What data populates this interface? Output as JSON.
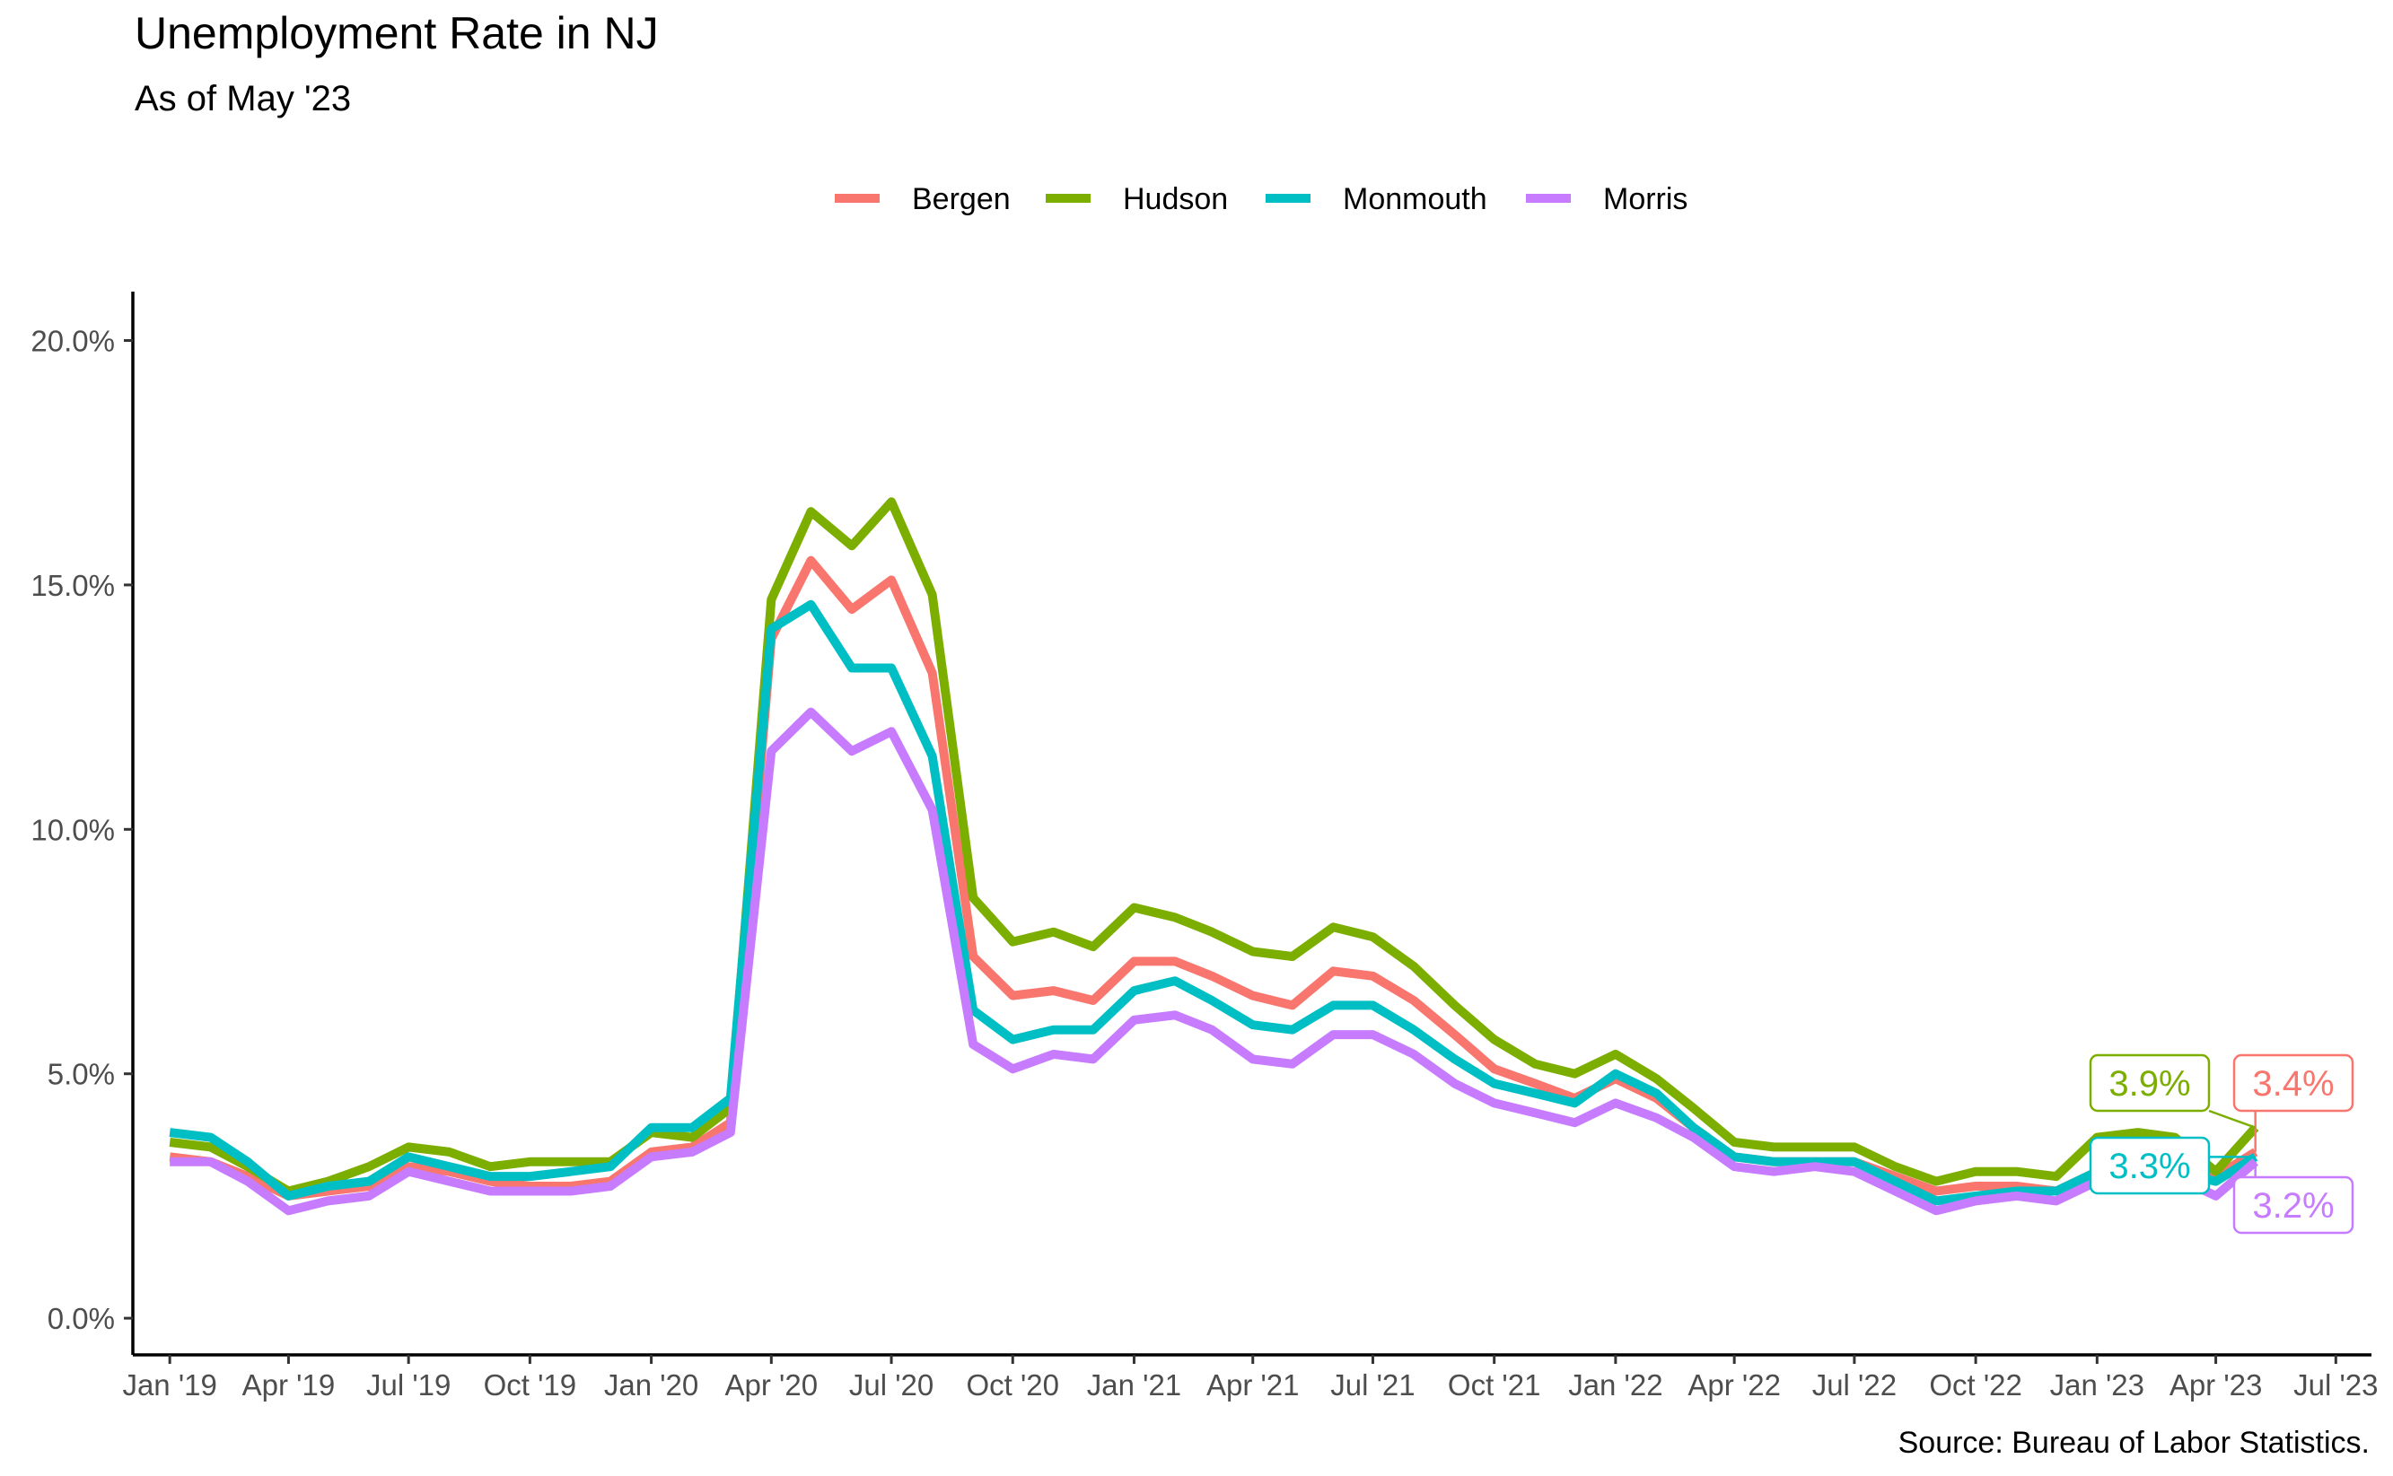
{
  "title": "Unemployment Rate in NJ",
  "subtitle": "As of May '23",
  "caption": "Source: Bureau of Labor Statistics.",
  "chart_data": {
    "type": "line",
    "x_type": "date",
    "x": [
      "2019-01",
      "2019-02",
      "2019-03",
      "2019-04",
      "2019-05",
      "2019-06",
      "2019-07",
      "2019-08",
      "2019-09",
      "2019-10",
      "2019-11",
      "2019-12",
      "2020-01",
      "2020-02",
      "2020-03",
      "2020-04",
      "2020-05",
      "2020-06",
      "2020-07",
      "2020-08",
      "2020-09",
      "2020-10",
      "2020-11",
      "2020-12",
      "2021-01",
      "2021-02",
      "2021-03",
      "2021-04",
      "2021-05",
      "2021-06",
      "2021-07",
      "2021-08",
      "2021-09",
      "2021-10",
      "2021-11",
      "2021-12",
      "2022-01",
      "2022-02",
      "2022-03",
      "2022-04",
      "2022-05",
      "2022-06",
      "2022-07",
      "2022-08",
      "2022-09",
      "2022-10",
      "2022-11",
      "2022-12",
      "2023-01",
      "2023-02",
      "2023-03",
      "2023-04",
      "2023-05"
    ],
    "xlim": [
      "2018-12-04",
      "2023-07-28"
    ],
    "ylim": [
      -0.75,
      21.0
    ],
    "y_ticks": [
      0,
      5,
      10,
      15,
      20
    ],
    "y_tick_labels": [
      "0.0%",
      "5.0%",
      "10.0%",
      "15.0%",
      "20.0%"
    ],
    "x_ticks": [
      "2019-01",
      "2019-04",
      "2019-07",
      "2019-10",
      "2020-01",
      "2020-04",
      "2020-07",
      "2020-10",
      "2021-01",
      "2021-04",
      "2021-07",
      "2021-10",
      "2022-01",
      "2022-04",
      "2022-07",
      "2022-10",
      "2023-01",
      "2023-04",
      "2023-07"
    ],
    "x_tick_labels": [
      "Jan '19",
      "Apr '19",
      "Jul '19",
      "Oct '19",
      "Jan '20",
      "Apr '20",
      "Jul '20",
      "Oct '20",
      "Jan '21",
      "Apr '21",
      "Jul '21",
      "Oct '21",
      "Jan '22",
      "Apr '22",
      "Jul '22",
      "Oct '22",
      "Jan '23",
      "Apr '23",
      "Jul '23"
    ],
    "legend_position": "top",
    "grid": false,
    "series": [
      {
        "name": "Bergen",
        "color": "#F8766D",
        "values": [
          3.3,
          3.2,
          2.9,
          2.5,
          2.6,
          2.7,
          3.1,
          3.0,
          2.8,
          2.7,
          2.7,
          2.8,
          3.4,
          3.5,
          4.0,
          13.9,
          15.5,
          14.5,
          15.1,
          13.2,
          7.4,
          6.6,
          6.7,
          6.5,
          7.3,
          7.3,
          7.0,
          6.6,
          6.4,
          7.1,
          7.0,
          6.5,
          5.8,
          5.1,
          4.8,
          4.5,
          4.9,
          4.5,
          3.9,
          3.3,
          3.2,
          3.2,
          3.2,
          2.9,
          2.6,
          2.7,
          2.7,
          2.6,
          3.0,
          3.1,
          3.0,
          2.9,
          3.4
        ],
        "end_label": "3.4%"
      },
      {
        "name": "Hudson",
        "color": "#7CAE00",
        "values": [
          3.6,
          3.5,
          3.1,
          2.6,
          2.8,
          3.1,
          3.5,
          3.4,
          3.1,
          3.2,
          3.2,
          3.2,
          3.8,
          3.7,
          4.3,
          14.7,
          16.5,
          15.8,
          16.7,
          14.8,
          8.6,
          7.7,
          7.9,
          7.6,
          8.4,
          8.2,
          7.9,
          7.5,
          7.4,
          8.0,
          7.8,
          7.2,
          6.4,
          5.7,
          5.2,
          5.0,
          5.4,
          4.9,
          4.3,
          3.6,
          3.5,
          3.5,
          3.5,
          3.1,
          2.8,
          3.0,
          3.0,
          2.9,
          3.7,
          3.8,
          3.7,
          3.0,
          3.9
        ],
        "end_label": "3.9%"
      },
      {
        "name": "Monmouth",
        "color": "#00BFC4",
        "values": [
          3.8,
          3.7,
          3.2,
          2.5,
          2.7,
          2.8,
          3.3,
          3.1,
          2.9,
          2.9,
          3.0,
          3.1,
          3.9,
          3.9,
          4.5,
          14.1,
          14.6,
          13.3,
          13.3,
          11.5,
          6.3,
          5.7,
          5.9,
          5.9,
          6.7,
          6.9,
          6.5,
          6.0,
          5.9,
          6.4,
          6.4,
          5.9,
          5.3,
          4.8,
          4.6,
          4.4,
          5.0,
          4.6,
          3.9,
          3.3,
          3.2,
          3.2,
          3.2,
          2.8,
          2.4,
          2.5,
          2.6,
          2.6,
          3.0,
          3.1,
          3.0,
          2.8,
          3.3
        ],
        "end_label": "3.3%"
      },
      {
        "name": "Morris",
        "color": "#C77CFF",
        "values": [
          3.2,
          3.2,
          2.8,
          2.2,
          2.4,
          2.5,
          3.0,
          2.8,
          2.6,
          2.6,
          2.6,
          2.7,
          3.3,
          3.4,
          3.8,
          11.6,
          12.4,
          11.6,
          12.0,
          10.4,
          5.6,
          5.1,
          5.4,
          5.3,
          6.1,
          6.2,
          5.9,
          5.3,
          5.2,
          5.8,
          5.8,
          5.4,
          4.8,
          4.4,
          4.2,
          4.0,
          4.4,
          4.1,
          3.7,
          3.1,
          3.0,
          3.1,
          3.0,
          2.6,
          2.2,
          2.4,
          2.5,
          2.4,
          2.8,
          2.9,
          2.9,
          2.5,
          3.2
        ],
        "end_label": "3.2%"
      }
    ]
  }
}
